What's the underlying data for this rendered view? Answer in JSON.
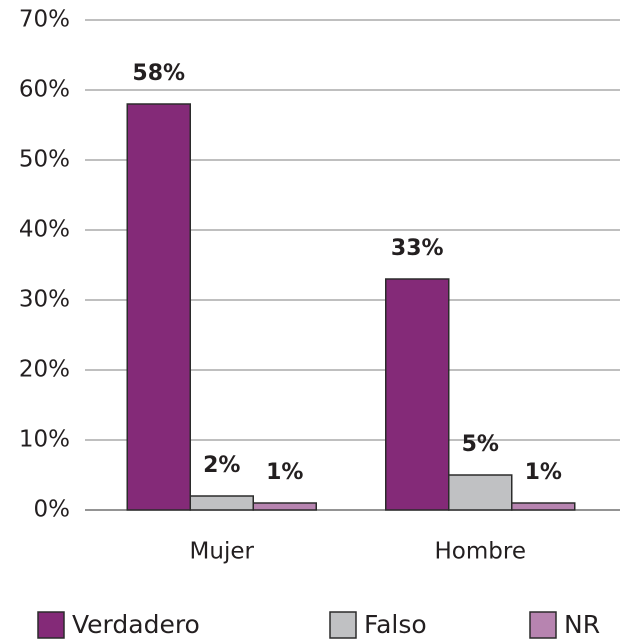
{
  "chart_data": {
    "type": "bar",
    "categories": [
      "Mujer",
      "Hombre"
    ],
    "series": [
      {
        "name": "Verdadero",
        "color": "#842a78",
        "values": [
          58,
          33
        ],
        "value_labels": [
          "58%",
          "33%"
        ]
      },
      {
        "name": "Falso",
        "color": "#c0c1c3",
        "values": [
          2,
          5
        ],
        "value_labels": [
          "2%",
          "5%"
        ]
      },
      {
        "name": "NR",
        "color": "#b784b0",
        "values": [
          1,
          1
        ],
        "value_labels": [
          "1%",
          "1%"
        ]
      }
    ],
    "ylim": [
      0,
      70
    ],
    "yticks": [
      {
        "value": 0,
        "label": "0%"
      },
      {
        "value": 10,
        "label": "10%"
      },
      {
        "value": 20,
        "label": "20%"
      },
      {
        "value": 30,
        "label": "30%"
      },
      {
        "value": 40,
        "label": "40%"
      },
      {
        "value": 50,
        "label": "50%"
      },
      {
        "value": 60,
        "label": "60%"
      },
      {
        "value": 70,
        "label": "70%"
      }
    ],
    "grid": true,
    "legend": "bottom"
  }
}
